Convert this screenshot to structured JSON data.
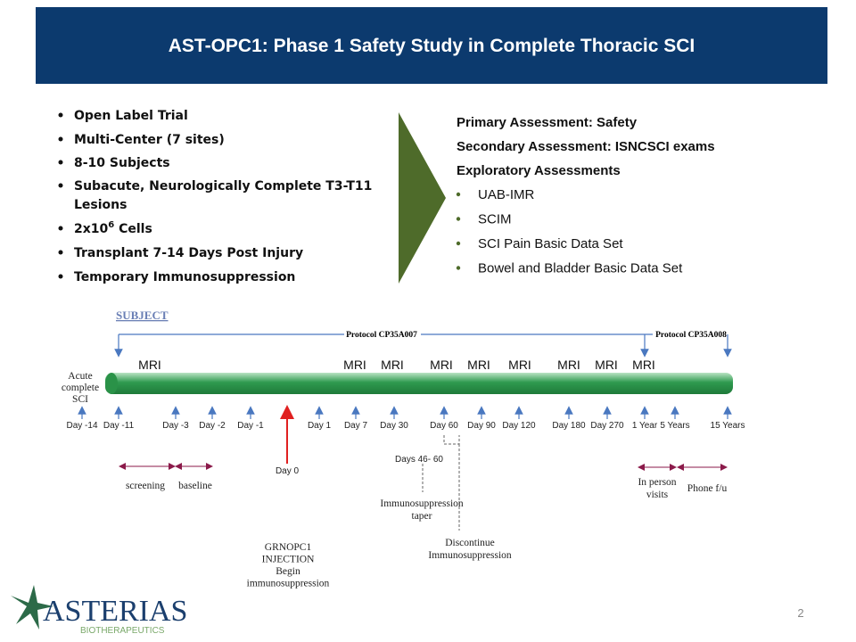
{
  "header": {
    "title": "AST-OPC1: Phase 1 Safety Study in Complete Thoracic SCI"
  },
  "left_bullets": [
    "Open Label Trial",
    "Multi-Center (7 sites)",
    "8-10 Subjects",
    "Subacute, Neurologically Complete T3-T11 Lesions",
    {
      "base": "2x10",
      "sup": "6",
      "rest": " Cells"
    },
    "Transplant 7-14 Days Post Injury",
    "Temporary Immunosuppression"
  ],
  "right": {
    "primary": "Primary Assessment: Safety",
    "secondary": "Secondary Assessment: ISNCSCI exams",
    "exploratory": "Exploratory Assessments",
    "bullets": [
      "UAB-IMR",
      "SCIM",
      "SCI Pain Basic Data Set",
      "Bowel and Bladder Basic Data Set"
    ]
  },
  "timeline": {
    "subject": "SUBJECT",
    "protocol_1": "Protocol CP35A007",
    "protocol_2": "Protocol CP35A008",
    "mri": [
      "MRI",
      "MRI",
      "MRI",
      "MRI",
      "MRI",
      "MRI",
      "MRI",
      "MRI",
      "MRI"
    ],
    "start_label": [
      "Acute",
      "complete",
      "SCI"
    ],
    "days": [
      "Day -14",
      "Day -11",
      "Day -3",
      "Day -2",
      "Day -1",
      "Day 1",
      "Day 7",
      "Day 30",
      "Day 60",
      "Day 90",
      "Day 120",
      "Day 180",
      "Day 270",
      "1 Year",
      "5 Years",
      "15 Years"
    ],
    "screening": "screening",
    "baseline": "baseline",
    "day0": "Day 0",
    "days_46_60": "Days 46- 60",
    "taper": [
      "Immunosuppression",
      "taper"
    ],
    "discontinue": [
      "Discontinue",
      "Immunosuppression"
    ],
    "injection": [
      "GRNOPC1",
      "INJECTION",
      "Begin",
      "immunosuppression"
    ],
    "in_person": [
      "In person",
      "visits"
    ],
    "phone": "Phone f/u"
  },
  "footer": {
    "logo": "ASTERIAS",
    "logo_sub": "BIOTHERAPEUTICS",
    "page": "2"
  }
}
